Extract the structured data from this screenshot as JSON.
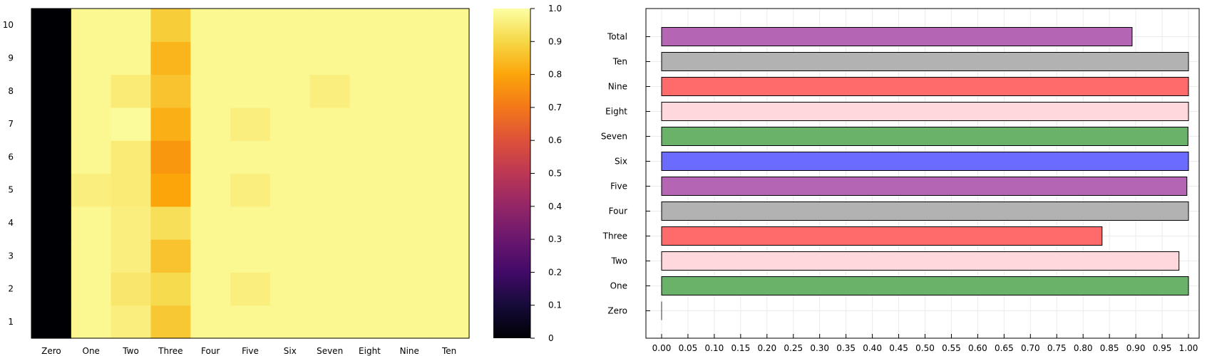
{
  "chart_data": [
    {
      "type": "heatmap",
      "x_categories": [
        "Zero",
        "One",
        "Two",
        "Three",
        "Four",
        "Five",
        "Six",
        "Seven",
        "Eight",
        "Nine",
        "Ten"
      ],
      "y_categories": [
        "1",
        "2",
        "3",
        "4",
        "5",
        "6",
        "7",
        "8",
        "9",
        "10"
      ],
      "values": [
        [
          0.0,
          0.98,
          0.96,
          0.87,
          0.98,
          0.98,
          0.98,
          0.98,
          0.98,
          0.98,
          0.98
        ],
        [
          0.0,
          0.98,
          0.94,
          0.91,
          0.98,
          0.96,
          0.98,
          0.98,
          0.98,
          0.98,
          0.98
        ],
        [
          0.0,
          0.98,
          0.96,
          0.86,
          0.98,
          0.98,
          0.98,
          0.98,
          0.98,
          0.98,
          0.98
        ],
        [
          0.0,
          0.98,
          0.96,
          0.92,
          0.98,
          0.98,
          0.98,
          0.98,
          0.98,
          0.98,
          0.98
        ],
        [
          0.0,
          0.96,
          0.95,
          0.8,
          0.98,
          0.96,
          0.98,
          0.98,
          0.98,
          0.98,
          0.98
        ],
        [
          0.0,
          0.98,
          0.95,
          0.77,
          0.98,
          0.98,
          0.98,
          0.98,
          0.98,
          0.98,
          0.98
        ],
        [
          0.0,
          0.98,
          0.99,
          0.82,
          0.98,
          0.96,
          0.98,
          0.98,
          0.98,
          0.98,
          0.98
        ],
        [
          0.0,
          0.98,
          0.95,
          0.86,
          0.98,
          0.98,
          0.98,
          0.96,
          0.98,
          0.98,
          0.98
        ],
        [
          0.0,
          0.98,
          0.98,
          0.83,
          0.98,
          0.98,
          0.98,
          0.98,
          0.98,
          0.98,
          0.98
        ],
        [
          0.0,
          0.98,
          0.98,
          0.88,
          0.98,
          0.98,
          0.98,
          0.98,
          0.98,
          0.98,
          0.98
        ]
      ],
      "colorbar": {
        "colormap": "inferno",
        "range": [
          0,
          1
        ],
        "ticks": [
          "0",
          "0.1",
          "0.2",
          "0.3",
          "0.4",
          "0.5",
          "0.6",
          "0.7",
          "0.8",
          "0.9",
          "1.0"
        ]
      }
    },
    {
      "type": "bar",
      "orientation": "horizontal",
      "categories": [
        "Zero",
        "One",
        "Two",
        "Three",
        "Four",
        "Five",
        "Six",
        "Seven",
        "Eight",
        "Nine",
        "Ten",
        "Total"
      ],
      "values": [
        0.0,
        1.0,
        0.982,
        0.836,
        1.0,
        0.997,
        1.0,
        0.999,
        1.0,
        1.0,
        1.0,
        0.893
      ],
      "colors": [
        "#6fb36f",
        "#6ab26a",
        "#ffd8dd",
        "#ff6b6b",
        "#b2b2b2",
        "#b466b4",
        "#6b6bff",
        "#6ab26a",
        "#ffd8dd",
        "#ff6b6b",
        "#b2b2b2",
        "#b466b4"
      ],
      "xlim": [
        0,
        1
      ],
      "xticks": [
        "0.00",
        "0.05",
        "0.10",
        "0.15",
        "0.20",
        "0.25",
        "0.30",
        "0.35",
        "0.40",
        "0.45",
        "0.50",
        "0.55",
        "0.60",
        "0.65",
        "0.70",
        "0.75",
        "0.80",
        "0.85",
        "0.90",
        "0.95",
        "1.00"
      ],
      "grid": true
    }
  ]
}
